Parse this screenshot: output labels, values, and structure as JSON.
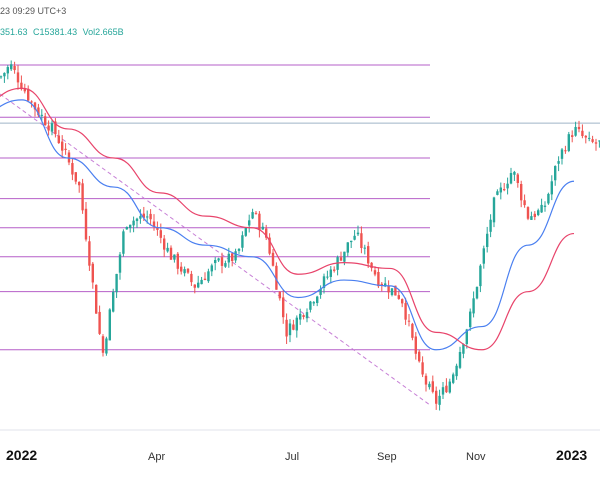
{
  "header": {
    "timestamp": "23 09:29 UTC+3",
    "ohlc": [
      "351.63",
      "C15381.43",
      "Vol2.665B"
    ]
  },
  "colors": {
    "up": "#26a69a",
    "down": "#ef5350",
    "fast_ma": "#4a7ff0",
    "slow_ma": "#e8446b",
    "levels": "#b65fc8",
    "trendline": "#c77fd6",
    "top_line": "#9fb4c8"
  },
  "chart_data": {
    "type": "line",
    "title": "",
    "x_axis_labels": [
      {
        "label": "2022",
        "bold": true
      },
      {
        "label": "Apr",
        "bold": false
      },
      {
        "label": "Jul",
        "bold": false
      },
      {
        "label": "Sep",
        "bold": false
      },
      {
        "label": "Nov",
        "bold": false
      },
      {
        "label": "2023",
        "bold": true
      }
    ],
    "y_range_approx": [
      10400,
      16500
    ],
    "horizontal_levels": [
      16300,
      15400,
      14700,
      14000,
      13500,
      13000,
      12400,
      11400
    ],
    "upper_reference_line": 15300,
    "trendline": {
      "from_date": "Dec 2021",
      "from_price": 15800,
      "to_date": "Oct 2022",
      "to_price": 10450
    },
    "series": [
      {
        "name": "price",
        "points": [
          [
            "Dec 2021",
            15600
          ],
          [
            "Jan 2022",
            16300
          ],
          [
            "Jan 2022",
            15600
          ],
          [
            "Feb 2022",
            15100
          ],
          [
            "Feb 2022",
            14200
          ],
          [
            "Mar 2022",
            11300
          ],
          [
            "Mar 2022",
            13600
          ],
          [
            "Apr 2022",
            13700
          ],
          [
            "Apr 2022",
            13000
          ],
          [
            "May 2022",
            12500
          ],
          [
            "May 2022",
            12900
          ],
          [
            "Jun 2022",
            13000
          ],
          [
            "Jun 2022",
            13800
          ],
          [
            "Jun 2022",
            13300
          ],
          [
            "Jul 2022",
            11700
          ],
          [
            "Jul 2022",
            12200
          ],
          [
            "Aug 2022",
            12800
          ],
          [
            "Aug 2022",
            13400
          ],
          [
            "Sep 2022",
            12600
          ],
          [
            "Sep 2022",
            12300
          ],
          [
            "Oct 2022",
            11000
          ],
          [
            "Oct 2022",
            10500
          ],
          [
            "Oct 2022",
            10900
          ],
          [
            "Nov 2022",
            12000
          ],
          [
            "Nov 2022",
            13900
          ],
          [
            "Dec 2022",
            14500
          ],
          [
            "Dec 2022",
            13700
          ],
          [
            "Dec 2022",
            13800
          ],
          [
            "Jan 2023",
            14700
          ],
          [
            "Jan 2023",
            15200
          ],
          [
            "Jan 2023",
            14950
          ]
        ]
      },
      {
        "name": "fast moving average",
        "points": [
          [
            "Dec 2021",
            15450
          ],
          [
            "Jan 2022",
            15700
          ],
          [
            "Feb 2022",
            14700
          ],
          [
            "Mar 2022",
            14200
          ],
          [
            "Apr 2022",
            13500
          ],
          [
            "May 2022",
            13200
          ],
          [
            "Jun 2022",
            13000
          ],
          [
            "Jul 2022",
            12300
          ],
          [
            "Aug 2022",
            12600
          ],
          [
            "Sep 2022",
            12500
          ],
          [
            "Oct 2022",
            11400
          ],
          [
            "Nov 2022",
            11800
          ],
          [
            "Dec 2022",
            13200
          ],
          [
            "Jan 2023",
            14300
          ]
        ]
      },
      {
        "name": "slow moving average",
        "points": [
          [
            "Dec 2021",
            15600
          ],
          [
            "Jan 2022",
            15900
          ],
          [
            "Feb 2022",
            15200
          ],
          [
            "Mar 2022",
            14700
          ],
          [
            "Apr 2022",
            14100
          ],
          [
            "May 2022",
            13700
          ],
          [
            "Jun 2022",
            13500
          ],
          [
            "Jul 2022",
            12700
          ],
          [
            "Aug 2022",
            12900
          ],
          [
            "Sep 2022",
            12800
          ],
          [
            "Oct 2022",
            11700
          ],
          [
            "Nov 2022",
            11400
          ],
          [
            "Dec 2022",
            12400
          ],
          [
            "Jan 2023",
            13400
          ]
        ]
      }
    ]
  }
}
